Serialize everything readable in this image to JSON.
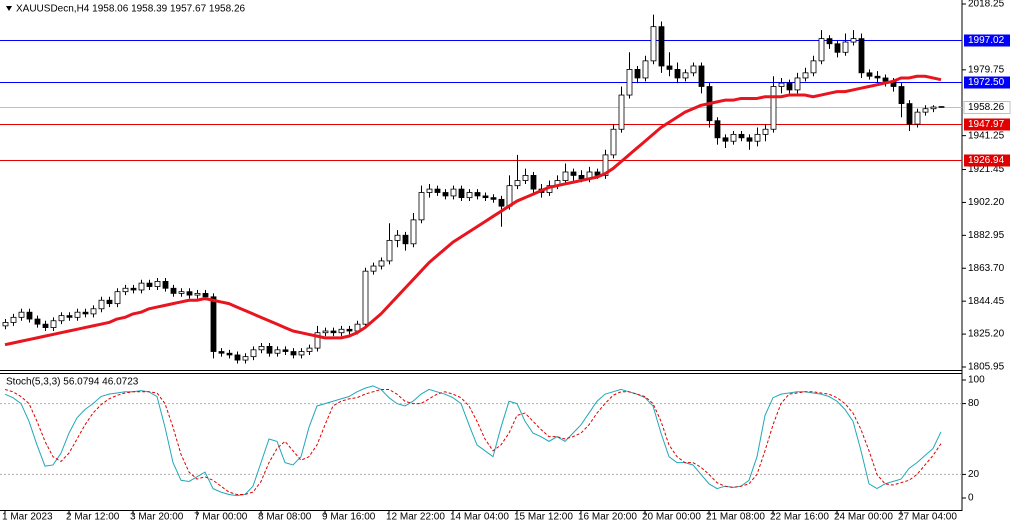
{
  "chart_data": [
    {
      "type": "candlestick",
      "title": "XAUUSDecn,H4  1958.06 1958.39 1957.67 1958.26",
      "categories": [
        "1 Mar 2023",
        null,
        null,
        null,
        null,
        null,
        null,
        null,
        "2 Mar 12:00",
        null,
        null,
        null,
        null,
        null,
        null,
        null,
        "3 Mar 20:00",
        null,
        null,
        null,
        null,
        null,
        null,
        null,
        "7 Mar 00:00",
        null,
        null,
        null,
        null,
        null,
        null,
        null,
        "8 Mar 08:00",
        null,
        null,
        null,
        null,
        null,
        null,
        null,
        "9 Mar 16:00",
        null,
        null,
        null,
        null,
        null,
        null,
        null,
        "12 Mar 22:00",
        null,
        null,
        null,
        null,
        null,
        null,
        null,
        "14 Mar 04:00",
        null,
        null,
        null,
        null,
        null,
        null,
        null,
        "15 Mar 12:00",
        null,
        null,
        null,
        null,
        null,
        null,
        null,
        "16 Mar 20:00",
        null,
        null,
        null,
        null,
        null,
        null,
        null,
        "20 Mar 00:00",
        null,
        null,
        null,
        null,
        null,
        null,
        null,
        "21 Mar 08:00",
        null,
        null,
        null,
        null,
        null,
        null,
        null,
        "22 Mar 16:00",
        null,
        null,
        null,
        null,
        null,
        null,
        null,
        "24 Mar 00:00",
        null,
        null,
        null,
        null,
        null,
        null,
        null,
        "27 Mar 04:00",
        null,
        null,
        null,
        null,
        null
      ],
      "open": [
        1830,
        1832,
        1835,
        1838,
        1834,
        1831,
        1829,
        1833,
        1836,
        1835,
        1838,
        1837,
        1840,
        1845,
        1843,
        1850,
        1852,
        1851,
        1855,
        1853,
        1856,
        1852,
        1849,
        1850,
        1848,
        1849,
        1847,
        1815,
        1814,
        1813,
        1810,
        1812,
        1816,
        1818,
        1814,
        1816,
        1815,
        1813,
        1815,
        1817,
        1826,
        1827,
        1826,
        1828,
        1827,
        1831,
        1862,
        1865,
        1868,
        1880,
        1883,
        1878,
        1892,
        1908,
        1910,
        1908,
        1906,
        1910,
        1905,
        1908,
        1906,
        1905,
        1904,
        1900,
        1912,
        1915,
        1918,
        1910,
        1908,
        1912,
        1915,
        1920,
        1918,
        1916,
        1920,
        1918,
        1930,
        1945,
        1965,
        1980,
        1975,
        1985,
        2005,
        1982,
        1980,
        1975,
        1978,
        1982,
        1970,
        1950,
        1940,
        1938,
        1942,
        1940,
        1938,
        1942,
        1945,
        1970,
        1972,
        1968,
        1975,
        1978,
        1985,
        1998,
        1995,
        1990,
        1996,
        1998,
        1978,
        1976,
        1975,
        1973,
        1970,
        1960,
        1948,
        1955,
        1957,
        1958.06
      ],
      "high": [
        1834,
        1837,
        1840,
        1840,
        1836,
        1833,
        1835,
        1838,
        1838,
        1840,
        1840,
        1842,
        1847,
        1847,
        1852,
        1854,
        1854,
        1857,
        1857,
        1858,
        1858,
        1854,
        1852,
        1852,
        1851,
        1851,
        1849,
        1817,
        1816,
        1815,
        1814,
        1818,
        1820,
        1820,
        1818,
        1818,
        1817,
        1817,
        1819,
        1830,
        1829,
        1829,
        1830,
        1830,
        1833,
        1864,
        1867,
        1870,
        1890,
        1886,
        1885,
        1896,
        1912,
        1913,
        1912,
        1910,
        1912,
        1912,
        1910,
        1910,
        1908,
        1907,
        1906,
        1918,
        1930,
        1922,
        1920,
        1913,
        1915,
        1918,
        1925,
        1922,
        1921,
        1923,
        1922,
        1933,
        1948,
        1970,
        1990,
        1982,
        1988,
        2012,
        2008,
        1990,
        1984,
        1980,
        1984,
        1984,
        1972,
        1952,
        1942,
        1944,
        1944,
        1942,
        1946,
        1948,
        1976,
        1975,
        1974,
        1978,
        1981,
        1988,
        2003,
        2000,
        1997,
        2001,
        2003,
        2001,
        1980,
        1979,
        1977,
        1975,
        1972,
        1962,
        1957,
        1959,
        1959,
        1958.39
      ],
      "low": [
        1828,
        1830,
        1833,
        1832,
        1829,
        1827,
        1827,
        1831,
        1833,
        1833,
        1835,
        1835,
        1838,
        1841,
        1841,
        1848,
        1849,
        1849,
        1851,
        1851,
        1850,
        1847,
        1847,
        1846,
        1846,
        1845,
        1811,
        1812,
        1811,
        1808,
        1808,
        1810,
        1814,
        1812,
        1812,
        1813,
        1811,
        1811,
        1813,
        1815,
        1824,
        1824,
        1824,
        1825,
        1825,
        1829,
        1860,
        1863,
        1866,
        1876,
        1874,
        1876,
        1890,
        1905,
        1906,
        1904,
        1904,
        1903,
        1903,
        1904,
        1903,
        1902,
        1888,
        1898,
        1910,
        1913,
        1908,
        1905,
        1906,
        1910,
        1913,
        1915,
        1914,
        1914,
        1916,
        1916,
        1928,
        1943,
        1963,
        1972,
        1973,
        1983,
        1978,
        1976,
        1972,
        1973,
        1976,
        1966,
        1946,
        1936,
        1934,
        1936,
        1938,
        1933,
        1935,
        1938,
        1943,
        1966,
        1966,
        1966,
        1973,
        1976,
        1983,
        1992,
        1987,
        1988,
        1994,
        1975,
        1974,
        1972,
        1970,
        1967,
        1952,
        1944,
        1946,
        1953,
        1955,
        1957.67
      ],
      "close": [
        1832,
        1835,
        1838,
        1834,
        1831,
        1829,
        1833,
        1836,
        1835,
        1838,
        1837,
        1840,
        1845,
        1843,
        1850,
        1852,
        1851,
        1855,
        1853,
        1856,
        1852,
        1849,
        1850,
        1848,
        1849,
        1847,
        1815,
        1814,
        1813,
        1810,
        1812,
        1816,
        1818,
        1814,
        1816,
        1815,
        1813,
        1815,
        1817,
        1826,
        1827,
        1826,
        1828,
        1827,
        1831,
        1862,
        1865,
        1868,
        1880,
        1883,
        1878,
        1892,
        1908,
        1910,
        1908,
        1906,
        1910,
        1905,
        1908,
        1906,
        1905,
        1904,
        1900,
        1912,
        1915,
        1918,
        1910,
        1908,
        1912,
        1915,
        1920,
        1918,
        1916,
        1920,
        1918,
        1930,
        1945,
        1965,
        1980,
        1975,
        1985,
        2005,
        1982,
        1980,
        1975,
        1978,
        1982,
        1970,
        1950,
        1940,
        1938,
        1942,
        1940,
        1938,
        1942,
        1945,
        1970,
        1972,
        1968,
        1975,
        1978,
        1985,
        1998,
        1995,
        1990,
        1996,
        1998,
        1978,
        1976,
        1975,
        1973,
        1970,
        1960,
        1948,
        1955,
        1957,
        1958,
        1958.26
      ],
      "ma": {
        "color": "#e8141e",
        "values": [
          1819,
          1820,
          1821,
          1822,
          1823,
          1824,
          1825,
          1826,
          1827,
          1828,
          1829,
          1830,
          1831,
          1832,
          1834,
          1835,
          1837,
          1838,
          1840,
          1841,
          1842,
          1843,
          1844,
          1845,
          1845,
          1846,
          1845,
          1844,
          1843,
          1841,
          1839,
          1837,
          1835,
          1833,
          1831,
          1829,
          1827,
          1826,
          1825,
          1824,
          1823,
          1823,
          1823,
          1824,
          1826,
          1829,
          1833,
          1837,
          1842,
          1847,
          1852,
          1857,
          1862,
          1867,
          1871,
          1875,
          1879,
          1882,
          1885,
          1888,
          1891,
          1894,
          1897,
          1900,
          1903,
          1905,
          1907,
          1909,
          1911,
          1912,
          1913,
          1914,
          1915,
          1916,
          1917,
          1919,
          1922,
          1926,
          1930,
          1934,
          1938,
          1942,
          1946,
          1949,
          1952,
          1955,
          1957,
          1959,
          1960,
          1961,
          1962,
          1962,
          1963,
          1963,
          1963,
          1964,
          1964,
          1964,
          1965,
          1965,
          1965,
          1964,
          1965,
          1966,
          1967,
          1967,
          1968,
          1969,
          1970,
          1971,
          1972,
          1973,
          1975,
          1975,
          1976,
          1976,
          1975,
          1974
        ]
      },
      "ylim": [
        1805.95,
        2018.25
      ],
      "yticks": [
        2018.25,
        1979.75,
        1941.25,
        1921.45,
        {
          "value": 1902.2,
          "label": "1902.20"
        },
        1882.95,
        {
          "value": 1863.7,
          "label": "1863.70"
        },
        1844.45,
        {
          "value": 1825.2,
          "label": "1825.20"
        },
        1805.95
      ],
      "levels": [
        {
          "value": 1997.02,
          "color": "#0000ff"
        },
        {
          "value": 1972.5,
          "label": "1972.50",
          "color": "#0000ff"
        },
        {
          "value": 1947.97,
          "color": "#e00000"
        },
        {
          "value": 1926.94,
          "color": "#e00000"
        }
      ]
    },
    {
      "type": "stochastic",
      "title": "Stoch(5,3,3) 56.0794 46.0723",
      "series": [
        {
          "color": "#20a8b8",
          "values": [
            88,
            85,
            80,
            65,
            45,
            27,
            28,
            38,
            55,
            68,
            75,
            80,
            86,
            88,
            89,
            90,
            90,
            91,
            90,
            86,
            60,
            30,
            15,
            14,
            18,
            22,
            8,
            5,
            3,
            2,
            3,
            10,
            30,
            50,
            48,
            30,
            28,
            35,
            60,
            78,
            80,
            82,
            84,
            86,
            90,
            93,
            95,
            92,
            85,
            80,
            78,
            82,
            88,
            92,
            90,
            88,
            85,
            80,
            62,
            45,
            40,
            35,
            60,
            82,
            80,
            65,
            55,
            52,
            48,
            52,
            48,
            55,
            62,
            72,
            82,
            88,
            90,
            92,
            90,
            88,
            85,
            78,
            55,
            35,
            30,
            30,
            28,
            20,
            12,
            8,
            10,
            9,
            10,
            15,
            35,
            70,
            85,
            88,
            89,
            90,
            90,
            89,
            88,
            86,
            82,
            75,
            65,
            40,
            12,
            8,
            12,
            14,
            16,
            25,
            30,
            36,
            42,
            56.0794
          ]
        },
        {
          "color": "#e00000",
          "dashed": true,
          "values": [
            92,
            90,
            86,
            80,
            65,
            48,
            35,
            31,
            38,
            50,
            62,
            72,
            79,
            84,
            87,
            89,
            90,
            90,
            90,
            89,
            80,
            60,
            37,
            22,
            16,
            18,
            15,
            10,
            5,
            3,
            3,
            5,
            14,
            30,
            42,
            48,
            40,
            32,
            35,
            45,
            62,
            78,
            82,
            84,
            85,
            88,
            90,
            92,
            92,
            88,
            82,
            80,
            80,
            84,
            88,
            90,
            88,
            85,
            78,
            65,
            50,
            40,
            45,
            55,
            70,
            72,
            65,
            58,
            52,
            52,
            50,
            52,
            55,
            62,
            72,
            80,
            87,
            90,
            90,
            88,
            86,
            80,
            65,
            45,
            35,
            30,
            30,
            26,
            20,
            13,
            10,
            9,
            10,
            12,
            20,
            40,
            62,
            80,
            88,
            89,
            90,
            90,
            89,
            88,
            85,
            80,
            72,
            58,
            40,
            20,
            12,
            11,
            13,
            15,
            20,
            28,
            36,
            46.0723
          ]
        }
      ],
      "ylim": [
        0,
        100
      ],
      "yticks": [
        100,
        80,
        20,
        0
      ]
    }
  ]
}
